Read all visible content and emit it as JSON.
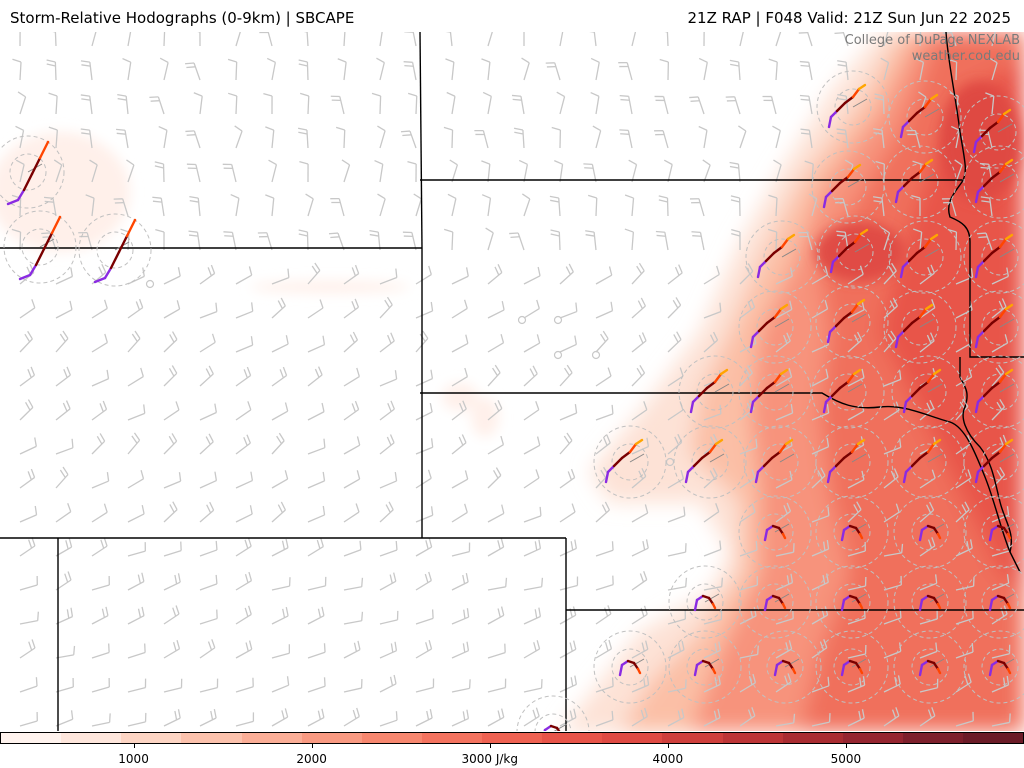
{
  "header": {
    "title_left": "Storm-Relative Hodographs (0-9km) | SBCAPE",
    "title_right": "21Z RAP | F048 Valid: 21Z Sun Jun 22 2025"
  },
  "credit": {
    "line1": "College of DuPage NEXLAB",
    "line2": "weather.cod.edu"
  },
  "colors": {
    "background": "#ffffff",
    "state_border": "#000000",
    "barb": "#c8c8c8",
    "ring": "#c0c0c0",
    "hodo_low": "#8a2be2",
    "hodo_mid": "#7a0000",
    "hodo_upper": "#ff4500",
    "hodo_top": "#ffa500"
  },
  "map_layers": {
    "field": "SBCAPE",
    "overlay": "Storm-Relative Hodographs (0-9km)",
    "wind_barbs": true,
    "range_rings": true
  },
  "colorbar": {
    "unit_label": "3000 J/kg",
    "ticks": [
      {
        "value": 1000,
        "label": "1000"
      },
      {
        "value": 2000,
        "label": "2000"
      },
      {
        "value": 3000,
        "label": "3000 J/kg"
      },
      {
        "value": 4000,
        "label": "4000"
      },
      {
        "value": 5000,
        "label": "5000"
      }
    ],
    "min": 250,
    "max": 6000,
    "colors": [
      "#fff3ee",
      "#fee6dc",
      "#fdd5c4",
      "#fcc2ad",
      "#fbae97",
      "#f99a82",
      "#f7876f",
      "#f4735f",
      "#ef6252",
      "#e85449",
      "#df4a43",
      "#cf3f3c",
      "#bd3536",
      "#a92c31",
      "#952530",
      "#7d1f2b",
      "#6b1b27"
    ]
  }
}
